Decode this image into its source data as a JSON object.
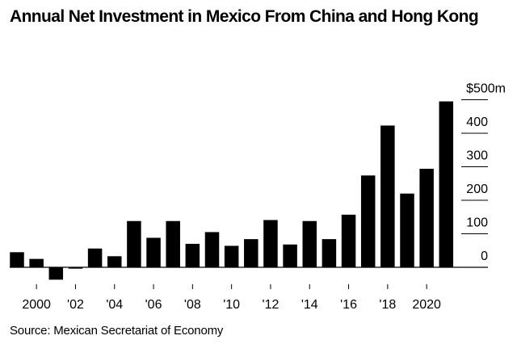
{
  "chart_data": {
    "type": "bar",
    "title": "Annual Net Investment in Mexico From China and Hong Kong",
    "xlabel": "",
    "ylabel": "",
    "y_unit_label": "$500m",
    "categories": [
      "1999",
      "2000",
      "2001",
      "2002",
      "2003",
      "2004",
      "2005",
      "2006",
      "2007",
      "2008",
      "2009",
      "2010",
      "2011",
      "2012",
      "2013",
      "2014",
      "2015",
      "2016",
      "2017",
      "2018",
      "2019",
      "2020",
      "2021"
    ],
    "values": [
      45,
      25,
      -37,
      -4,
      56,
      33,
      138,
      88,
      138,
      70,
      105,
      64,
      84,
      141,
      68,
      138,
      84,
      157,
      274,
      423,
      220,
      294,
      495
    ],
    "ylim": [
      -40,
      500
    ],
    "y_ticks": [
      0,
      100,
      200,
      300,
      400,
      500
    ],
    "y_tick_labels": [
      "0",
      "100",
      "200",
      "300",
      "400",
      "$500m"
    ],
    "y_axis_position": "right",
    "x_ticks": [
      {
        "category": "2000",
        "label": "2000"
      },
      {
        "category": "2002",
        "label": "'02"
      },
      {
        "category": "2004",
        "label": "'04"
      },
      {
        "category": "2006",
        "label": "'06"
      },
      {
        "category": "2008",
        "label": "'08"
      },
      {
        "category": "2010",
        "label": "'10"
      },
      {
        "category": "2012",
        "label": "'12"
      },
      {
        "category": "2014",
        "label": "'14"
      },
      {
        "category": "2016",
        "label": "'16"
      },
      {
        "category": "2018",
        "label": "'18"
      },
      {
        "category": "2020",
        "label": "2020"
      }
    ],
    "grid": true,
    "legend": "none",
    "bar_color": "#000000"
  },
  "source": "Source: Mexican Secretariat of Economy"
}
